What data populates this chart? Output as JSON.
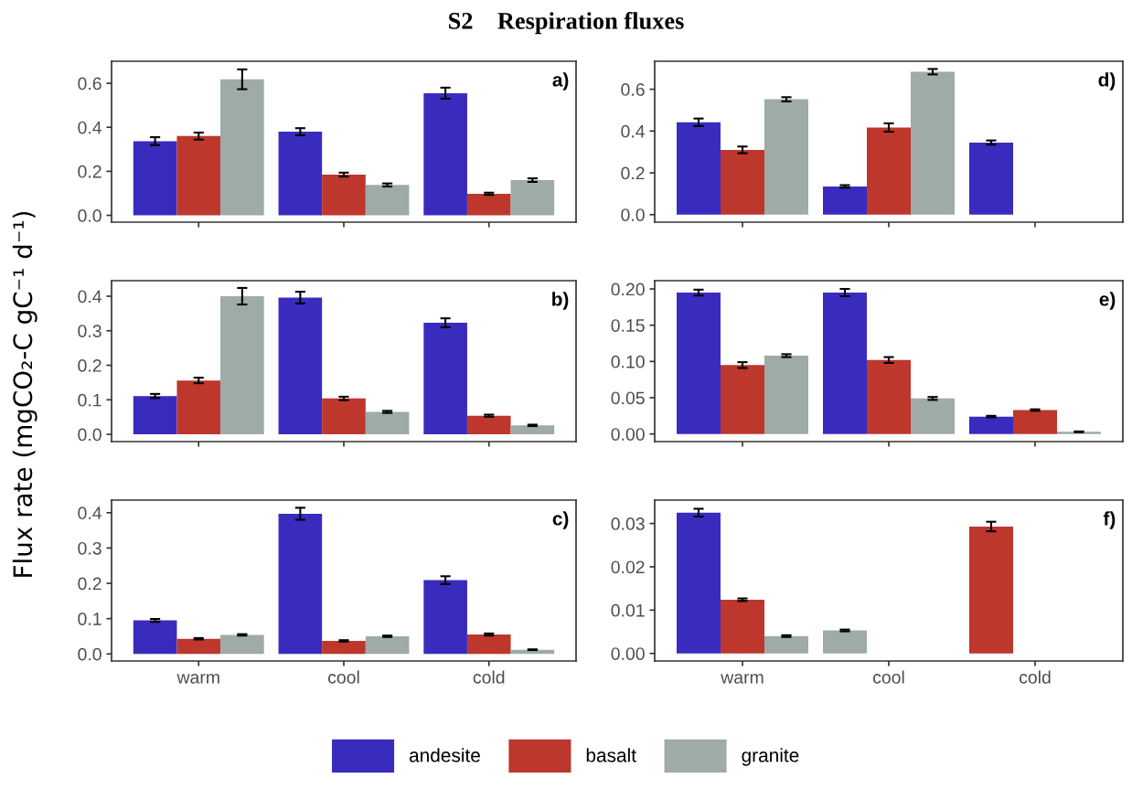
{
  "chart_data": [
    {
      "type": "bar",
      "title": "S2    Respiration fluxes",
      "ylabel": "Flux rate (mgCO₂-C gC⁻¹ d⁻¹)",
      "annotations": [
        "a)"
      ],
      "legend": "bottom",
      "categories": [
        "warm",
        "cool",
        "cold"
      ],
      "tick_labels": "y",
      "ylim": [
        -0.031,
        0.7
      ],
      "yticks": [
        {
          "value": 0,
          "label": "0.0"
        },
        0.2,
        0.4,
        0.6
      ],
      "series": [
        {
          "name": "andesite",
          "color": "#3a2bbf",
          "values": [
            0.337,
            0.38,
            0.555
          ],
          "errors": [
            0.018,
            0.016,
            0.025
          ]
        },
        {
          "name": "basalt",
          "color": "#bd372d",
          "values": [
            0.36,
            0.185,
            0.098
          ],
          "errors": [
            0.016,
            0.009,
            0.005
          ]
        },
        {
          "name": "granite",
          "color": "#9eaba7",
          "values": [
            0.618,
            0.138,
            0.16
          ],
          "errors": [
            0.045,
            0.007,
            0.008
          ]
        }
      ]
    },
    {
      "type": "bar",
      "annotations": [
        "d)"
      ],
      "categories": [
        "warm",
        "cool",
        "cold"
      ],
      "tick_labels": "y",
      "ylim": [
        -0.036,
        0.734
      ],
      "yticks": [
        {
          "value": 0,
          "label": "0.0"
        },
        0.2,
        0.4,
        0.6
      ],
      "series": [
        {
          "name": "andesite",
          "color": "#3a2bbf",
          "values": [
            0.442,
            0.135,
            0.345
          ],
          "errors": [
            0.018,
            0.006,
            0.01
          ]
        },
        {
          "name": "basalt",
          "color": "#bd372d",
          "values": [
            0.31,
            0.417,
            null
          ],
          "errors": [
            0.016,
            0.02,
            null
          ]
        },
        {
          "name": "granite",
          "color": "#9eaba7",
          "values": [
            0.552,
            0.684,
            null
          ],
          "errors": [
            0.01,
            0.013,
            null
          ]
        }
      ]
    },
    {
      "type": "bar",
      "annotations": [
        "b)"
      ],
      "categories": [
        "warm",
        "cool",
        "cold"
      ],
      "tick_labels": "y",
      "ylim": [
        -0.021,
        0.445
      ],
      "yticks": [
        {
          "value": 0,
          "label": "0.0"
        },
        0.1,
        0.2,
        0.3,
        0.4
      ],
      "series": [
        {
          "name": "andesite",
          "color": "#3a2bbf",
          "values": [
            0.111,
            0.396,
            0.323
          ],
          "errors": [
            0.006,
            0.017,
            0.013
          ]
        },
        {
          "name": "basalt",
          "color": "#bd372d",
          "values": [
            0.156,
            0.104,
            0.054
          ],
          "errors": [
            0.008,
            0.005,
            0.003
          ]
        },
        {
          "name": "granite",
          "color": "#9eaba7",
          "values": [
            0.4,
            0.065,
            0.026
          ],
          "errors": [
            0.024,
            0.003,
            0.002
          ]
        }
      ]
    },
    {
      "type": "bar",
      "annotations": [
        "e)"
      ],
      "categories": [
        "warm",
        "cool",
        "cold"
      ],
      "tick_labels": "y",
      "ylim": [
        -0.0105,
        0.2114
      ],
      "yticks": [
        {
          "value": 0,
          "label": "0.00"
        },
        0.05,
        {
          "value": 0.1,
          "label": "0.10"
        },
        0.15,
        {
          "value": 0.2,
          "label": "0.20"
        }
      ],
      "series": [
        {
          "name": "andesite",
          "color": "#3a2bbf",
          "values": [
            0.195,
            0.195,
            0.024
          ],
          "errors": [
            0.004,
            0.005,
            0.001
          ]
        },
        {
          "name": "basalt",
          "color": "#bd372d",
          "values": [
            0.095,
            0.102,
            0.033
          ],
          "errors": [
            0.004,
            0.004,
            0.001
          ]
        },
        {
          "name": "granite",
          "color": "#9eaba7",
          "values": [
            0.108,
            0.049,
            0.003
          ],
          "errors": [
            0.002,
            0.002,
            0.0005
          ]
        }
      ]
    },
    {
      "type": "bar",
      "annotations": [
        "c)"
      ],
      "categories": [
        "warm",
        "cool",
        "cold"
      ],
      "ylim": [
        -0.02,
        0.4357
      ],
      "yticks": [
        {
          "value": 0,
          "label": "0.0"
        },
        0.1,
        0.2,
        0.3,
        0.4
      ],
      "series": [
        {
          "name": "andesite",
          "color": "#3a2bbf",
          "values": [
            0.095,
            0.397,
            0.209
          ],
          "errors": [
            0.004,
            0.017,
            0.011
          ]
        },
        {
          "name": "basalt",
          "color": "#bd372d",
          "values": [
            0.043,
            0.037,
            0.055
          ],
          "errors": [
            0.002,
            0.002,
            0.003
          ]
        },
        {
          "name": "granite",
          "color": "#9eaba7",
          "values": [
            0.054,
            0.05,
            0.012
          ],
          "errors": [
            0.002,
            0.002,
            0.001
          ]
        }
      ]
    },
    {
      "type": "bar",
      "annotations": [
        "f)"
      ],
      "categories": [
        "warm",
        "cool",
        "cold"
      ],
      "ylim": [
        -0.00175,
        0.0354
      ],
      "yticks": [
        {
          "value": 0,
          "label": "0.00"
        },
        0.01,
        0.02,
        0.03
      ],
      "series": [
        {
          "name": "andesite",
          "color": "#3a2bbf",
          "values": [
            0.0325,
            null,
            null
          ],
          "errors": [
            0.0009,
            null,
            null
          ]
        },
        {
          "name": "basalt",
          "color": "#bd372d",
          "values": [
            0.0124,
            null,
            0.0293
          ],
          "errors": [
            0.0003,
            null,
            0.0011
          ]
        },
        {
          "name": "granite",
          "color": "#9eaba7",
          "values": [
            0.004,
            0.0053,
            null
          ],
          "errors": [
            0.0002,
            0.0002,
            null
          ]
        }
      ]
    }
  ]
}
